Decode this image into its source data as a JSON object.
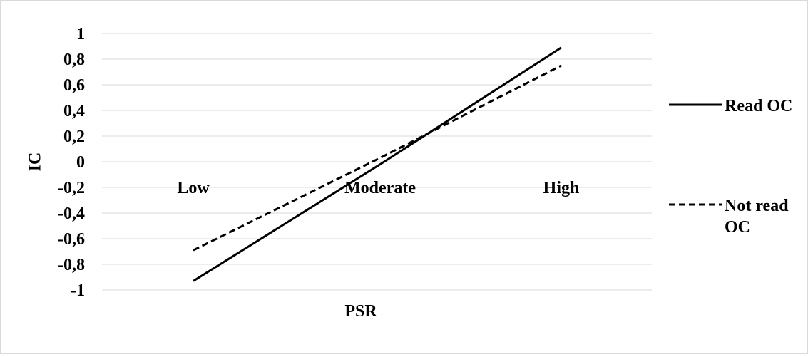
{
  "chart_data": {
    "type": "line",
    "title": "",
    "xlabel": "PSR",
    "ylabel": "IC",
    "categories": [
      "Low",
      "Moderate",
      "High"
    ],
    "ylim": [
      -1,
      1
    ],
    "yticks": [
      -1,
      -0.8,
      -0.6,
      -0.4,
      -0.2,
      0,
      0.2,
      0.4,
      0.6,
      0.8,
      1
    ],
    "ytick_labels": [
      "-1",
      "-0,8",
      "-0,6",
      "-0,4",
      "-0,2",
      "0",
      "0,2",
      "0,4",
      "0,6",
      "0,8",
      "1"
    ],
    "grid": true,
    "legend_position": "right",
    "series": [
      {
        "name": "Read OC",
        "legend_lines": [
          "Read OC"
        ],
        "style": "solid",
        "color": "#000000",
        "values": [
          -0.93,
          -0.02,
          0.89
        ]
      },
      {
        "name": "Not read OC",
        "legend_lines": [
          "Not read",
          "OC"
        ],
        "style": "dashed",
        "color": "#000000",
        "values": [
          -0.69,
          0.03,
          0.75
        ]
      }
    ]
  }
}
